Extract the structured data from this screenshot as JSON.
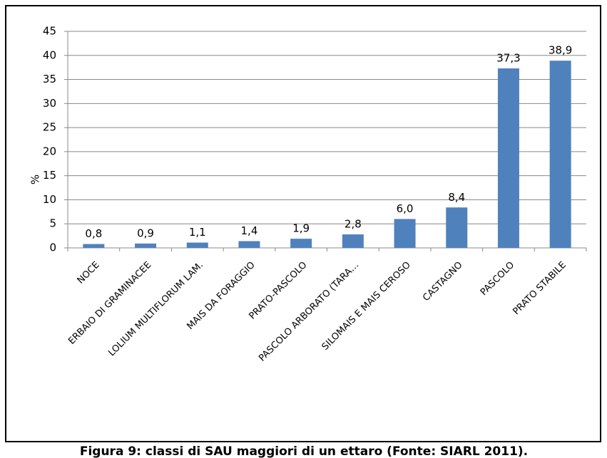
{
  "chart_data": {
    "type": "bar",
    "categories": [
      "NOCE",
      "ERBAIO DI GRAMINACEE",
      "LOLIUM MULTIFLORUM  LAM.",
      "MAIS DA FORAGGIO",
      "PRATO-PASCOLO",
      "PASCOLO ARBORATO (TARA…",
      "SILOMAIS E MAIS CEROSO",
      "CASTAGNO",
      "PASCOLO",
      "PRATO STABILE"
    ],
    "values": [
      0.8,
      0.9,
      1.1,
      1.4,
      1.9,
      2.8,
      6.0,
      8.4,
      37.3,
      38.9
    ],
    "value_labels": [
      "0,8",
      "0,9",
      "1,1",
      "1,4",
      "1,9",
      "2,8",
      "6,0",
      "8,4",
      "37,3",
      "38,9"
    ],
    "color": "#4f81bd",
    "y_label": "%",
    "ylim": [
      0,
      45
    ],
    "yticks": [
      0,
      5,
      10,
      15,
      20,
      25,
      30,
      35,
      40,
      45
    ],
    "grid": true,
    "caption": "Figura 9: classi di SAU maggiori di un ettaro (Fonte: SIARL 2011)."
  }
}
